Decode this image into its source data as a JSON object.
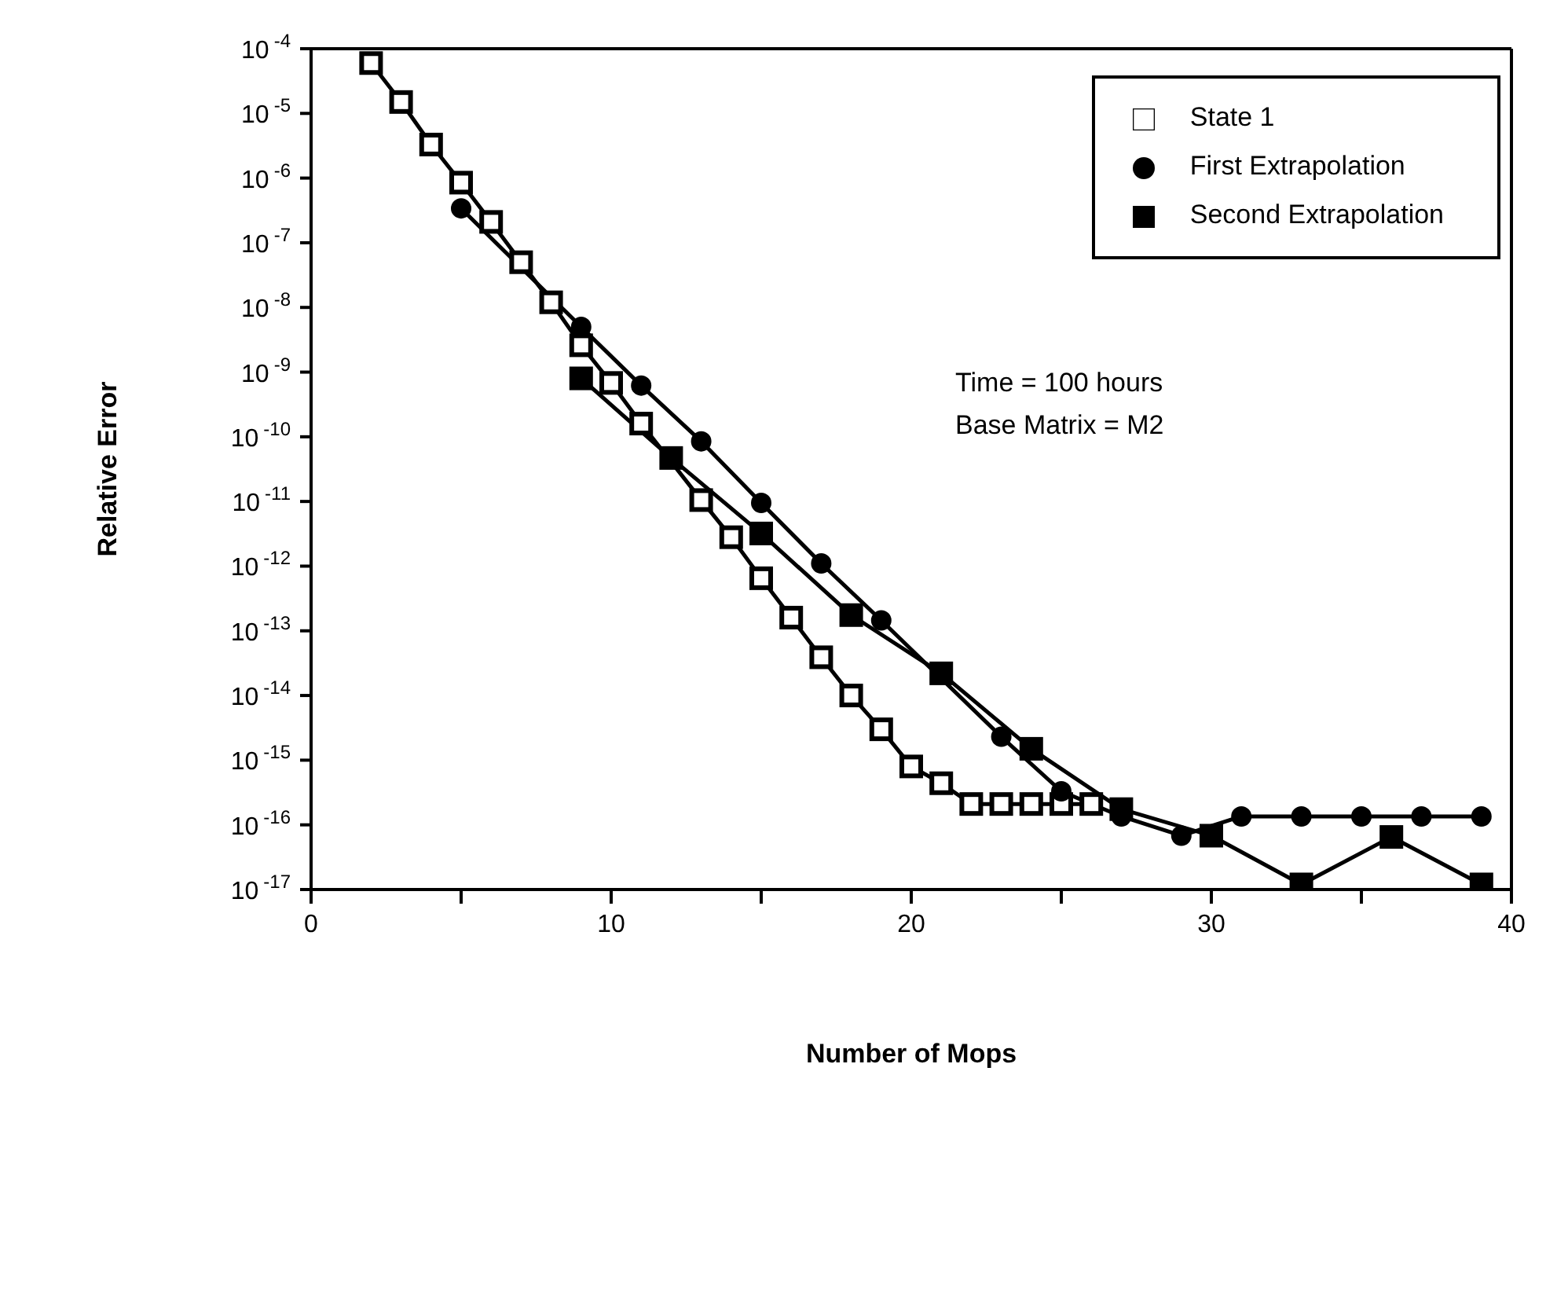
{
  "chart_data": {
    "type": "line",
    "xlabel": "Number of Mops",
    "ylabel": "Relative  Error",
    "log": "y",
    "grid": false,
    "legend": "top right",
    "line_style": "solid",
    "xlim": [
      0,
      40
    ],
    "xticks": [
      0,
      {
        "value": 5,
        "label": null
      },
      10,
      {
        "value": 15,
        "label": null
      },
      20,
      {
        "value": 25,
        "label": null
      },
      30,
      {
        "value": 35,
        "label": null
      },
      40
    ],
    "ylim": [
      1e-17,
      0.0001
    ],
    "yticks": [
      {
        "value": 0.0001,
        "label": "10$^{-4}$"
      },
      {
        "value": 1e-05,
        "label": "10$^{-5}$"
      },
      {
        "value": 1e-06,
        "label": "10$^{-6}$"
      },
      {
        "value": 1e-07,
        "label": "10$^{-7}$"
      },
      {
        "value": 1e-08,
        "label": "10$^{-8}$"
      },
      {
        "value": 1e-09,
        "label": "10$^{-9}$"
      },
      {
        "value": 1e-10,
        "label": "10$^{-10}$"
      },
      {
        "value": 1e-11,
        "label": "10$^{-11}$"
      },
      {
        "value": 1e-12,
        "label": "10$^{-12}$"
      },
      {
        "value": 1e-13,
        "label": "10$^{-13}$"
      },
      {
        "value": 1e-14,
        "label": "10$^{-14}$"
      },
      {
        "value": 1e-15,
        "label": "10$^{-15}$"
      },
      {
        "value": 1e-16,
        "label": "10$^{-16}$"
      },
      {
        "value": 1e-17,
        "label": "10$^{-17}$"
      }
    ],
    "annotations": [
      "Time = 100 hours",
      "Base Matrix = M2"
    ],
    "series": [
      {
        "name": "State 1",
        "color": "#000000",
        "marker": "square",
        "x": [
          2,
          3,
          4,
          5,
          6,
          7,
          8,
          9,
          10,
          11,
          12,
          13,
          14,
          15,
          16,
          17,
          18,
          19,
          20,
          21,
          22,
          23,
          24,
          25,
          26
        ],
        "values": [
          6e-05,
          1.5e-05,
          3.3e-06,
          8.5e-07,
          2.1e-07,
          5e-08,
          1.2e-08,
          2.6e-09,
          6.8e-10,
          1.6e-10,
          null,
          1.05e-11,
          2.8e-12,
          6.5e-13,
          1.6e-13,
          3.9e-14,
          1e-14,
          3e-15,
          8e-16,
          4.4e-16,
          2.1e-16,
          2.1e-16,
          2.1e-16,
          2.1e-16,
          2.1e-16
        ]
      },
      {
        "name": "First Extrapolation",
        "color": "#000000",
        "marker": "circle",
        "x": [
          5,
          9,
          11,
          13,
          15,
          17,
          19,
          21,
          23,
          25,
          27,
          29,
          31,
          33,
          35,
          37,
          39
        ],
        "values": [
          3.4e-07,
          5e-09,
          6.2e-10,
          8.5e-11,
          9.5e-12,
          1.1e-12,
          1.45e-13,
          null,
          2.3e-15,
          3.3e-16,
          1.35e-16,
          6.8e-17,
          1.35e-16,
          1.35e-16,
          1.35e-16,
          1.35e-16,
          1.35e-16
        ]
      },
      {
        "name": "Second Extrapolation",
        "color": "#000000",
        "marker": "square",
        "x": [
          9,
          12,
          15,
          18,
          21,
          24,
          27,
          30,
          33,
          36,
          39
        ],
        "values": [
          8e-10,
          4.7e-11,
          3.2e-12,
          1.75e-13,
          2.2e-14,
          1.5e-15,
          1.75e-16,
          6.8e-17,
          1.2e-17,
          6.5e-17,
          1.2e-17
        ]
      }
    ]
  }
}
